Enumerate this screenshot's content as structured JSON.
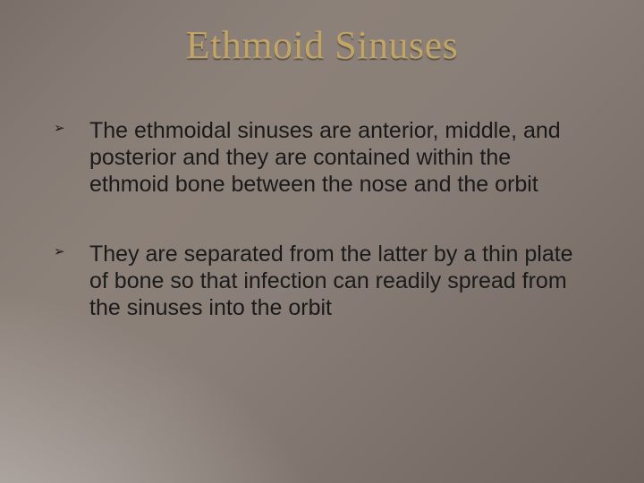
{
  "slide": {
    "title": "Ethmoid Sinuses",
    "title_color": "#c2a465",
    "title_fontsize": 44,
    "title_font_family": "Georgia, 'Times New Roman', serif",
    "body_fontsize": 25,
    "body_color": "#1a1a1a",
    "bullet_glyph": "➢",
    "background_gradient_colors": [
      "#7a6f68",
      "#867b74",
      "#8c8179",
      "#8a7f78",
      "#7d726b",
      "#6f645e"
    ],
    "light_ray_origin": "bottom-left",
    "bullets": [
      "The ethmoidal sinuses are anterior, middle, and posterior and they are contained within the ethmoid bone between the nose and the orbit",
      "They are separated from the latter by a thin plate of bone so that infection can readily spread from the sinuses into the orbit"
    ]
  }
}
